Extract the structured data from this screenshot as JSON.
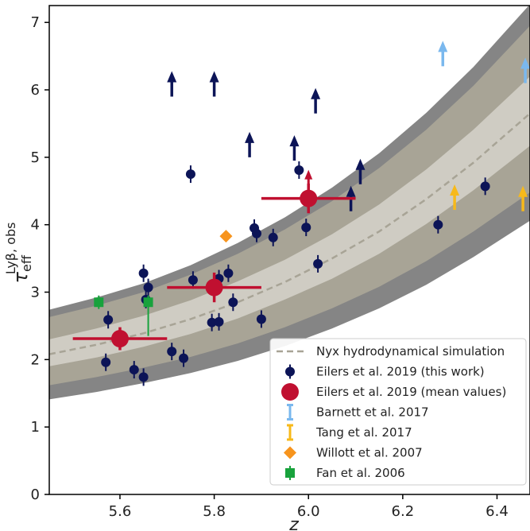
{
  "chart_data": {
    "type": "scatter",
    "title": "",
    "xlabel": "z",
    "ylabel": "τ_eff^{Lyβ, obs}",
    "ylabel_main": "τ",
    "ylabel_sub": "eff",
    "ylabel_sup": "Lyβ, obs",
    "xlim": [
      5.45,
      6.47
    ],
    "ylim": [
      0,
      7.25
    ],
    "xticks": [
      5.6,
      5.8,
      6.0,
      6.2,
      6.4
    ],
    "xtick_labels": [
      "5.6",
      "5.8",
      "6.0",
      "6.2",
      "6.4"
    ],
    "yticks": [
      0,
      1,
      2,
      3,
      4,
      5,
      6,
      7
    ],
    "ytick_labels": [
      "0",
      "1",
      "2",
      "3",
      "4",
      "5",
      "6",
      "7"
    ],
    "grid": false,
    "legend_position": "bottom-right",
    "colors": {
      "band_outer": "#858585",
      "band_mid": "#a8a496",
      "band_inner": "#cfccc3",
      "sim_line": "#a8a496",
      "this_work": "#0c1457",
      "mean": "#c01030",
      "barnett": "#7ab8ee",
      "tang": "#f7b91a",
      "willott": "#f7941d",
      "fan": "#18a23c"
    },
    "simulation": {
      "name": "Nyx hydrodynamical simulation",
      "x": [
        5.45,
        5.55,
        5.65,
        5.75,
        5.85,
        5.95,
        6.05,
        6.15,
        6.25,
        6.35,
        6.47
      ],
      "median": [
        2.08,
        2.22,
        2.39,
        2.6,
        2.85,
        3.15,
        3.5,
        3.9,
        4.38,
        4.92,
        5.65
      ],
      "inner_lo": [
        1.9,
        2.03,
        2.19,
        2.38,
        2.61,
        2.89,
        3.2,
        3.57,
        4.01,
        4.51,
        5.17
      ],
      "inner_hi": [
        2.3,
        2.46,
        2.65,
        2.88,
        3.16,
        3.48,
        3.86,
        4.3,
        4.82,
        5.41,
        6.2
      ],
      "mid_lo": [
        1.62,
        1.74,
        1.88,
        2.04,
        2.24,
        2.48,
        2.76,
        3.08,
        3.46,
        3.9,
        4.48
      ],
      "mid_hi": [
        2.63,
        2.8,
        3.0,
        3.26,
        3.57,
        3.93,
        4.35,
        4.84,
        5.41,
        6.06,
        6.95
      ],
      "outer_lo": [
        1.41,
        1.52,
        1.65,
        1.8,
        1.98,
        2.2,
        2.46,
        2.76,
        3.11,
        3.52,
        4.06
      ],
      "outer_hi": [
        2.74,
        2.92,
        3.13,
        3.4,
        3.73,
        4.11,
        4.55,
        5.06,
        5.66,
        6.34,
        7.27
      ]
    },
    "series": [
      {
        "name": "Eilers et al. 2019 (this work)",
        "marker": "circle",
        "points": [
          {
            "x": 5.57,
            "y": 1.96
          },
          {
            "x": 5.575,
            "y": 2.59
          },
          {
            "x": 5.63,
            "y": 1.85
          },
          {
            "x": 5.65,
            "y": 1.74
          },
          {
            "x": 5.65,
            "y": 3.28
          },
          {
            "x": 5.655,
            "y": 2.89
          },
          {
            "x": 5.66,
            "y": 3.07
          },
          {
            "x": 5.71,
            "y": 2.12
          },
          {
            "x": 5.735,
            "y": 2.02
          },
          {
            "x": 5.75,
            "y": 4.75
          },
          {
            "x": 5.755,
            "y": 3.18
          },
          {
            "x": 5.795,
            "y": 2.55
          },
          {
            "x": 5.81,
            "y": 2.56
          },
          {
            "x": 5.81,
            "y": 3.2
          },
          {
            "x": 5.83,
            "y": 3.28
          },
          {
            "x": 5.84,
            "y": 2.85
          },
          {
            "x": 5.885,
            "y": 3.95
          },
          {
            "x": 5.89,
            "y": 3.87
          },
          {
            "x": 5.9,
            "y": 2.6
          },
          {
            "x": 5.925,
            "y": 3.81
          },
          {
            "x": 5.98,
            "y": 4.81
          },
          {
            "x": 5.995,
            "y": 3.96
          },
          {
            "x": 6.02,
            "y": 3.42
          },
          {
            "x": 6.275,
            "y": 4.0
          },
          {
            "x": 6.375,
            "y": 4.57
          }
        ],
        "lower_limits": [
          {
            "x": 5.71,
            "y": 5.9
          },
          {
            "x": 5.8,
            "y": 5.9
          },
          {
            "x": 5.875,
            "y": 5.0
          },
          {
            "x": 5.97,
            "y": 4.95
          },
          {
            "x": 6.015,
            "y": 5.65
          },
          {
            "x": 6.09,
            "y": 4.2
          },
          {
            "x": 6.11,
            "y": 4.6
          }
        ]
      },
      {
        "name": "Eilers et al. 2019 (mean values)",
        "marker": "big-circle",
        "points": [
          {
            "x": 5.6,
            "y": 2.31,
            "xerr": 0.1,
            "yerr": 0.17
          },
          {
            "x": 5.8,
            "y": 3.07,
            "xerr": 0.1,
            "yerr": 0.22
          },
          {
            "x": 6.0,
            "y": 4.39,
            "xerr": 0.1,
            "yerr": 0.22
          }
        ]
      },
      {
        "name": "Barnett et al. 2017",
        "marker": "lower-limit",
        "lower_limits": [
          {
            "x": 6.285,
            "y": 6.35
          },
          {
            "x": 6.46,
            "y": 6.1
          }
        ]
      },
      {
        "name": "Tang et al. 2017",
        "marker": "lower-limit",
        "lower_limits": [
          {
            "x": 6.31,
            "y": 4.22
          },
          {
            "x": 6.455,
            "y": 4.2
          }
        ]
      },
      {
        "name": "Willott et al. 2007",
        "marker": "diamond",
        "points": [
          {
            "x": 5.825,
            "y": 3.83
          }
        ]
      },
      {
        "name": "Fan et al. 2006",
        "marker": "square",
        "points": [
          {
            "x": 5.555,
            "y": 2.85,
            "yerr": 0.1
          },
          {
            "x": 5.66,
            "y": 2.85,
            "yerr_lo": 0.5,
            "yerr_hi": 0.1
          }
        ]
      }
    ]
  }
}
